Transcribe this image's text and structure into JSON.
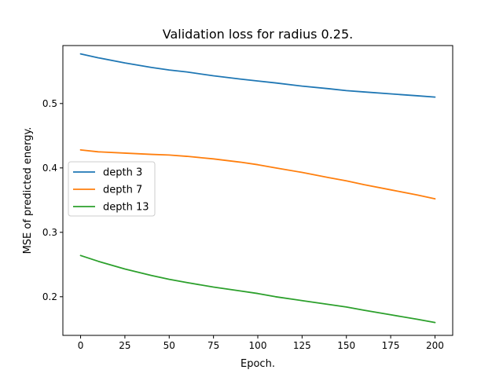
{
  "chart_data": {
    "type": "line",
    "title": "Validation loss for radius 0.25.",
    "xlabel": "Epoch.",
    "ylabel": "MSE of predicted energy.",
    "xlim": [
      -10,
      210
    ],
    "ylim": [
      0.14,
      0.59
    ],
    "xticks": [
      0,
      25,
      50,
      75,
      100,
      125,
      150,
      175,
      200
    ],
    "yticks": [
      0.2,
      0.3,
      0.4,
      0.5
    ],
    "ytick_labels": [
      "0.2",
      "0.3",
      "0.4",
      "0.5"
    ],
    "grid": false,
    "legend_position": "center-left",
    "x": [
      0,
      10,
      25,
      40,
      50,
      60,
      75,
      90,
      100,
      110,
      125,
      140,
      150,
      160,
      175,
      190,
      200
    ],
    "series": [
      {
        "name": "depth 3",
        "color": "#1f77b4",
        "values": [
          0.577,
          0.571,
          0.563,
          0.556,
          0.552,
          0.549,
          0.543,
          0.538,
          0.535,
          0.532,
          0.527,
          0.523,
          0.52,
          0.518,
          0.515,
          0.512,
          0.51
        ]
      },
      {
        "name": "depth 7",
        "color": "#ff7f0e",
        "values": [
          0.428,
          0.425,
          0.423,
          0.421,
          0.42,
          0.418,
          0.414,
          0.409,
          0.405,
          0.4,
          0.393,
          0.385,
          0.38,
          0.374,
          0.366,
          0.358,
          0.352
        ]
      },
      {
        "name": "depth 13",
        "color": "#2ca02c",
        "values": [
          0.264,
          0.255,
          0.243,
          0.233,
          0.227,
          0.222,
          0.215,
          0.209,
          0.205,
          0.2,
          0.194,
          0.188,
          0.184,
          0.179,
          0.172,
          0.165,
          0.16
        ]
      }
    ]
  }
}
